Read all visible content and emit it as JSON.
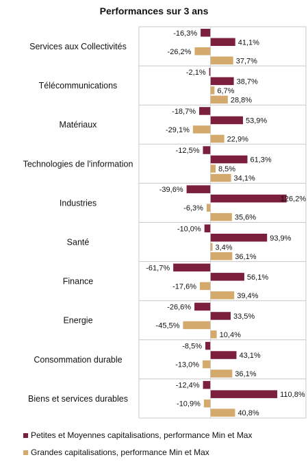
{
  "chart_data": {
    "type": "bar",
    "orientation": "horizontal",
    "title": "Performances sur 3 ans",
    "categories": [
      "Services aux Collectivités",
      "Télécommunications",
      "Matériaux",
      "Technologies de l'information",
      "Industries",
      "Santé",
      "Finance",
      "Energie",
      "Consommation durable",
      "Biens et services durables"
    ],
    "series": [
      {
        "name": "Petites et Moyennes capitalisations,  performance Min et Max",
        "color": "#7b1f3c",
        "min": [
          -16.3,
          -2.1,
          -18.7,
          -12.5,
          -39.6,
          -10.0,
          -61.7,
          -26.6,
          -8.5,
          -12.4
        ],
        "max": [
          41.1,
          38.7,
          53.9,
          61.3,
          126.2,
          93.9,
          56.1,
          33.5,
          43.1,
          110.8
        ],
        "min_labels": [
          "-16,3%",
          "-2,1%",
          "-18,7%",
          "-12,5%",
          "-39,6%",
          "-10,0%",
          "-61,7%",
          "-26,6%",
          "-8,5%",
          "-12,4%"
        ],
        "max_labels": [
          "41,1%",
          "38,7%",
          "53,9%",
          "61,3%",
          "126,2%",
          "93,9%",
          "56,1%",
          "33,5%",
          "43,1%",
          "110,8%"
        ]
      },
      {
        "name": "Grandes capitalisations,  performance Min et Max",
        "color": "#d4aa6c",
        "min": [
          -26.2,
          6.7,
          -29.1,
          8.5,
          -6.3,
          3.4,
          -17.6,
          -45.5,
          -13.0,
          -10.9
        ],
        "max": [
          37.7,
          28.8,
          22.9,
          34.1,
          35.6,
          36.1,
          39.4,
          10.4,
          36.1,
          40.8
        ],
        "min_labels": [
          "-26,2%",
          "6,7%",
          "-29,1%",
          "8,5%",
          "-6,3%",
          "3,4%",
          "-17,6%",
          "-45,5%",
          "-13,0%",
          "-10,9%"
        ],
        "max_labels": [
          "37,7%",
          "28,8%",
          "22,9%",
          "34,1%",
          "35,6%",
          "36,1%",
          "39,4%",
          "10,4%",
          "36,1%",
          "40,8%"
        ]
      }
    ],
    "grid": false,
    "legend_position": "bottom"
  }
}
